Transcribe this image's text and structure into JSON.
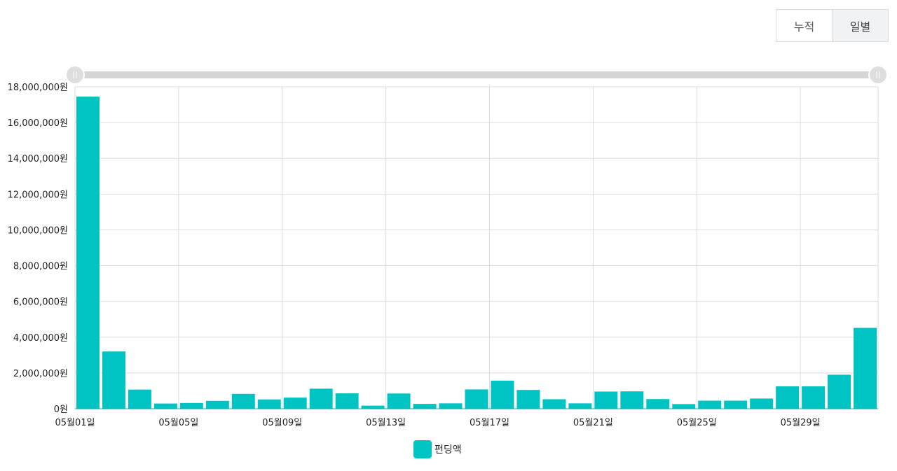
{
  "toggle": {
    "options": [
      "누적",
      "일별"
    ],
    "active": "일별"
  },
  "colors": {
    "bar": "#00c4c4",
    "grid": "#dcdcdc",
    "slider_track": "#d6d6d6",
    "slider_handle": "#dedede"
  },
  "chart_data": {
    "type": "bar",
    "title": "",
    "xlabel": "",
    "ylabel": "",
    "ylim": [
      0,
      18000000
    ],
    "y_ticks": [
      0,
      2000000,
      4000000,
      6000000,
      8000000,
      10000000,
      12000000,
      14000000,
      16000000,
      18000000
    ],
    "y_tick_labels": [
      "0원",
      "2,000,000원",
      "4,000,000원",
      "6,000,000원",
      "8,000,000원",
      "10,000,000원",
      "12,000,000원",
      "14,000,000원",
      "16,000,000원",
      "18,000,000원"
    ],
    "categories": [
      "05월01일",
      "05월02일",
      "05월03일",
      "05월04일",
      "05월05일",
      "05월06일",
      "05월07일",
      "05월08일",
      "05월09일",
      "05월10일",
      "05월11일",
      "05월12일",
      "05월13일",
      "05월14일",
      "05월15일",
      "05월16일",
      "05월17일",
      "05월18일",
      "05월19일",
      "05월20일",
      "05월21일",
      "05월22일",
      "05월23일",
      "05월24일",
      "05월25일",
      "05월26일",
      "05월27일",
      "05월28일",
      "05월29일",
      "05월30일",
      "05월31일"
    ],
    "x_tick_labels": [
      "05월01일",
      "05월05일",
      "05월09일",
      "05월13일",
      "05월17일",
      "05월21일",
      "05월25일",
      "05월29일"
    ],
    "series": [
      {
        "name": "펀딩액",
        "values": [
          17450000,
          3200000,
          1070000,
          290000,
          320000,
          440000,
          830000,
          520000,
          620000,
          1120000,
          860000,
          170000,
          850000,
          270000,
          300000,
          1080000,
          1570000,
          1050000,
          530000,
          300000,
          960000,
          970000,
          540000,
          260000,
          450000,
          450000,
          570000,
          1250000,
          1250000,
          1900000,
          4520000
        ]
      }
    ],
    "grid": true,
    "legend": "bottom-center",
    "range_slider": true
  }
}
